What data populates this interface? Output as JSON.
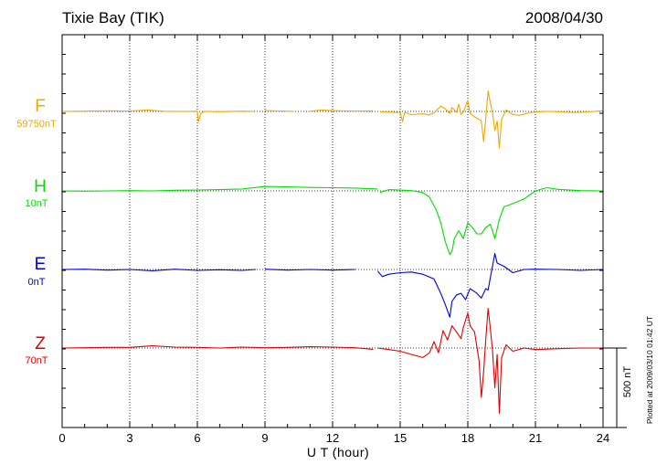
{
  "header": {
    "station": "Tixie Bay (TIK)",
    "date": "2008/04/30"
  },
  "plotted_note": "Plotted at 2009/03/10 01:42 UT",
  "scale_label": "500 nT",
  "colors": {
    "F": "#f0a800",
    "H": "#00e000",
    "E": "#0000d8",
    "Z": "#e00000"
  },
  "chart_data": {
    "type": "line",
    "xlabel": "U T (hour)",
    "xlim": [
      0,
      24
    ],
    "xticks": [
      "0",
      "3",
      "6",
      "9",
      "12",
      "15",
      "18",
      "21",
      "24"
    ],
    "grid": true,
    "scale_bar_nT": 500,
    "channels": [
      {
        "name": "F",
        "base": "59750nT",
        "color": "#f0a800"
      },
      {
        "name": "H",
        "base": "10nT",
        "color": "#00e000"
      },
      {
        "name": "E",
        "base": "0nT",
        "color": "#0000d8"
      },
      {
        "name": "Z",
        "base": "70nT",
        "color": "#e00000"
      }
    ],
    "series": [
      {
        "name": "F",
        "gaps": [
          [
            8.6,
            8.8
          ],
          [
            10.3,
            10.9
          ],
          [
            13.9,
            14.1
          ]
        ],
        "points": [
          [
            0,
            0
          ],
          [
            1.0,
            2
          ],
          [
            2.0,
            4
          ],
          [
            3.0,
            3
          ],
          [
            3.8,
            9
          ],
          [
            4.5,
            1
          ],
          [
            5.5,
            0
          ],
          [
            6.0,
            2
          ],
          [
            6.05,
            -64
          ],
          [
            6.15,
            -15
          ],
          [
            6.3,
            0
          ],
          [
            7,
            -2
          ],
          [
            8,
            2
          ],
          [
            8.5,
            0
          ],
          [
            9,
            6
          ],
          [
            10.3,
            0
          ],
          [
            10.9,
            0
          ],
          [
            11.5,
            9
          ],
          [
            12,
            6
          ],
          [
            13,
            2
          ],
          [
            13.8,
            4
          ],
          [
            14.1,
            -2
          ],
          [
            15,
            -7
          ],
          [
            15.1,
            -64
          ],
          [
            15.2,
            -6
          ],
          [
            15.5,
            -20
          ],
          [
            16,
            -15
          ],
          [
            16.3,
            -22
          ],
          [
            16.5,
            -8
          ],
          [
            16.8,
            34
          ],
          [
            17,
            16
          ],
          [
            17.2,
            -12
          ],
          [
            17.3,
            24
          ],
          [
            17.5,
            -6
          ],
          [
            17.6,
            44
          ],
          [
            17.7,
            -18
          ],
          [
            17.8,
            -6
          ],
          [
            18,
            70
          ],
          [
            18.1,
            -12
          ],
          [
            18.3,
            -34
          ],
          [
            18.6,
            -60
          ],
          [
            18.7,
            -190
          ],
          [
            18.8,
            -40
          ],
          [
            18.9,
            130
          ],
          [
            19.0,
            52
          ],
          [
            19.1,
            -10
          ],
          [
            19.2,
            -120
          ],
          [
            19.3,
            -60
          ],
          [
            19.4,
            -230
          ],
          [
            19.5,
            -50
          ],
          [
            19.7,
            10
          ],
          [
            20,
            -20
          ],
          [
            20.3,
            -24
          ],
          [
            20.8,
            -6
          ],
          [
            21.5,
            0
          ],
          [
            22,
            -2
          ],
          [
            22.5,
            -6
          ],
          [
            23,
            -6
          ],
          [
            24,
            4
          ]
        ]
      },
      {
        "name": "H",
        "gaps": [
          [
            14.0,
            14.1
          ]
        ],
        "points": [
          [
            0,
            0
          ],
          [
            1,
            -2
          ],
          [
            2,
            0
          ],
          [
            3,
            2
          ],
          [
            4,
            0
          ],
          [
            5,
            4
          ],
          [
            6,
            6
          ],
          [
            7,
            8
          ],
          [
            8,
            12
          ],
          [
            9,
            28
          ],
          [
            10,
            26
          ],
          [
            11,
            22
          ],
          [
            12,
            20
          ],
          [
            13,
            18
          ],
          [
            14,
            12
          ],
          [
            14.1,
            -10
          ],
          [
            14.5,
            8
          ],
          [
            15.5,
            2
          ],
          [
            16,
            -10
          ],
          [
            16.3,
            -40
          ],
          [
            16.6,
            -120
          ],
          [
            16.8,
            -200
          ],
          [
            17,
            -320
          ],
          [
            17.2,
            -400
          ],
          [
            17.3,
            -380
          ],
          [
            17.4,
            -300
          ],
          [
            17.6,
            -250
          ],
          [
            17.8,
            -300
          ],
          [
            18,
            -200
          ],
          [
            18.2,
            -230
          ],
          [
            18.4,
            -270
          ],
          [
            18.6,
            -270
          ],
          [
            18.8,
            -230
          ],
          [
            19.0,
            -210
          ],
          [
            19.2,
            -300
          ],
          [
            19.4,
            -180
          ],
          [
            19.6,
            -100
          ],
          [
            20,
            -80
          ],
          [
            20.5,
            -50
          ],
          [
            21,
            0
          ],
          [
            21.5,
            20
          ],
          [
            22,
            10
          ],
          [
            23,
            2
          ],
          [
            24,
            0
          ]
        ]
      },
      {
        "name": "E",
        "gaps": [
          [
            8.6,
            8.7
          ],
          [
            13.9,
            14.0
          ]
        ],
        "points": [
          [
            0,
            0
          ],
          [
            1,
            2
          ],
          [
            2,
            -4
          ],
          [
            3,
            0
          ],
          [
            4,
            -8
          ],
          [
            5,
            2
          ],
          [
            6,
            -6
          ],
          [
            7,
            -2
          ],
          [
            8,
            -6
          ],
          [
            8.6,
            0
          ],
          [
            9,
            2
          ],
          [
            10,
            -4
          ],
          [
            11,
            0
          ],
          [
            12,
            -4
          ],
          [
            13,
            0
          ],
          [
            14,
            -10
          ],
          [
            14.2,
            -44
          ],
          [
            14.5,
            -30
          ],
          [
            15,
            -20
          ],
          [
            15.5,
            -16
          ],
          [
            16,
            -30
          ],
          [
            16.5,
            -60
          ],
          [
            16.8,
            -150
          ],
          [
            17,
            -220
          ],
          [
            17.2,
            -300
          ],
          [
            17.3,
            -200
          ],
          [
            17.5,
            -160
          ],
          [
            17.7,
            -150
          ],
          [
            17.9,
            -190
          ],
          [
            18.1,
            -120
          ],
          [
            18.4,
            -150
          ],
          [
            18.6,
            -180
          ],
          [
            18.8,
            -120
          ],
          [
            18.9,
            -130
          ],
          [
            19,
            -50
          ],
          [
            19.2,
            100
          ],
          [
            19.3,
            40
          ],
          [
            19.6,
            20
          ],
          [
            19.8,
            0
          ],
          [
            20,
            -20
          ],
          [
            20.5,
            0
          ],
          [
            21,
            2
          ],
          [
            22,
            0
          ],
          [
            23,
            -6
          ],
          [
            24,
            0
          ]
        ]
      },
      {
        "name": "Z",
        "gaps": [
          [
            13.8,
            14.0
          ]
        ],
        "points": [
          [
            0,
            0
          ],
          [
            1,
            2
          ],
          [
            2,
            4
          ],
          [
            3,
            4
          ],
          [
            4,
            14
          ],
          [
            5,
            6
          ],
          [
            6,
            4
          ],
          [
            7,
            0
          ],
          [
            8,
            6
          ],
          [
            9,
            2
          ],
          [
            10,
            4
          ],
          [
            11,
            8
          ],
          [
            12,
            6
          ],
          [
            13,
            2
          ],
          [
            13.8,
            -8
          ],
          [
            14.0,
            0
          ],
          [
            14.5,
            -10
          ],
          [
            15,
            -20
          ],
          [
            15.5,
            -40
          ],
          [
            16,
            -60
          ],
          [
            16.3,
            -30
          ],
          [
            16.5,
            40
          ],
          [
            16.7,
            -30
          ],
          [
            16.9,
            110
          ],
          [
            17.1,
            50
          ],
          [
            17.3,
            140
          ],
          [
            17.5,
            100
          ],
          [
            17.7,
            60
          ],
          [
            17.8,
            130
          ],
          [
            18,
            220
          ],
          [
            18.1,
            140
          ],
          [
            18.3,
            100
          ],
          [
            18.5,
            -80
          ],
          [
            18.6,
            -310
          ],
          [
            18.7,
            -150
          ],
          [
            18.8,
            60
          ],
          [
            18.9,
            250
          ],
          [
            19.0,
            120
          ],
          [
            19.1,
            -20
          ],
          [
            19.2,
            -250
          ],
          [
            19.3,
            -40
          ],
          [
            19.4,
            -410
          ],
          [
            19.5,
            -60
          ],
          [
            19.7,
            20
          ],
          [
            20,
            -20
          ],
          [
            20.5,
            0
          ],
          [
            21,
            -10
          ],
          [
            22,
            -4
          ],
          [
            23,
            0
          ],
          [
            24,
            0
          ]
        ]
      }
    ]
  }
}
